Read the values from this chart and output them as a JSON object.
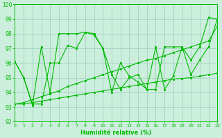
{
  "line1_x": [
    0,
    1,
    2,
    3,
    4,
    5,
    6,
    7,
    8,
    9,
    10,
    11,
    12,
    13,
    14,
    15,
    16,
    17,
    18,
    19,
    20,
    21,
    22,
    23
  ],
  "line1_y": [
    96.1,
    95.0,
    93.1,
    97.1,
    94.0,
    98.0,
    98.0,
    98.0,
    98.1,
    98.0,
    97.0,
    94.0,
    96.0,
    95.1,
    94.7,
    94.2,
    97.1,
    94.2,
    95.1,
    97.1,
    96.2,
    97.1,
    99.1,
    99.0
  ],
  "line2_x": [
    0,
    1,
    2,
    3,
    4,
    5,
    6,
    7,
    8,
    9,
    10,
    11,
    12,
    13,
    14,
    15,
    16,
    17,
    18,
    19,
    20,
    21,
    22,
    23
  ],
  "line2_y": [
    96.1,
    95.0,
    93.2,
    93.2,
    96.0,
    96.0,
    97.2,
    97.0,
    98.1,
    97.9,
    97.0,
    95.2,
    94.2,
    95.0,
    95.2,
    94.2,
    94.2,
    97.1,
    97.1,
    97.1,
    95.2,
    96.2,
    97.1,
    99.0
  ],
  "line3_x": [
    0,
    1,
    2,
    3,
    4,
    5,
    6,
    7,
    8,
    9,
    10,
    11,
    12,
    13,
    14,
    15,
    16,
    17,
    18,
    19,
    20,
    21,
    22,
    23
  ],
  "line3_y": [
    93.2,
    93.3,
    93.5,
    93.7,
    93.9,
    94.1,
    94.4,
    94.6,
    94.8,
    95.0,
    95.2,
    95.4,
    95.6,
    95.8,
    96.0,
    96.2,
    96.3,
    96.5,
    96.7,
    96.9,
    97.1,
    97.3,
    97.5,
    98.5
  ],
  "line4_x": [
    0,
    1,
    2,
    3,
    4,
    5,
    6,
    7,
    8,
    9,
    10,
    11,
    12,
    13,
    14,
    15,
    16,
    17,
    18,
    19,
    20,
    21,
    22,
    23
  ],
  "line4_y": [
    93.2,
    93.2,
    93.3,
    93.4,
    93.5,
    93.6,
    93.7,
    93.8,
    93.9,
    94.0,
    94.1,
    94.2,
    94.3,
    94.4,
    94.5,
    94.6,
    94.7,
    94.8,
    94.9,
    94.95,
    95.0,
    95.1,
    95.2,
    95.3
  ],
  "xlabel": "Humidité relative (%)",
  "ylim": [
    92,
    100
  ],
  "xlim": [
    0,
    23
  ],
  "yticks": [
    92,
    93,
    94,
    95,
    96,
    97,
    98,
    99,
    100
  ],
  "xticks": [
    0,
    1,
    2,
    3,
    4,
    5,
    6,
    7,
    8,
    9,
    10,
    11,
    12,
    13,
    14,
    15,
    16,
    17,
    18,
    19,
    20,
    21,
    22,
    23
  ],
  "bg_color": "#cceedd",
  "grid_color": "#99ccbb",
  "line_color": "#00bb00"
}
